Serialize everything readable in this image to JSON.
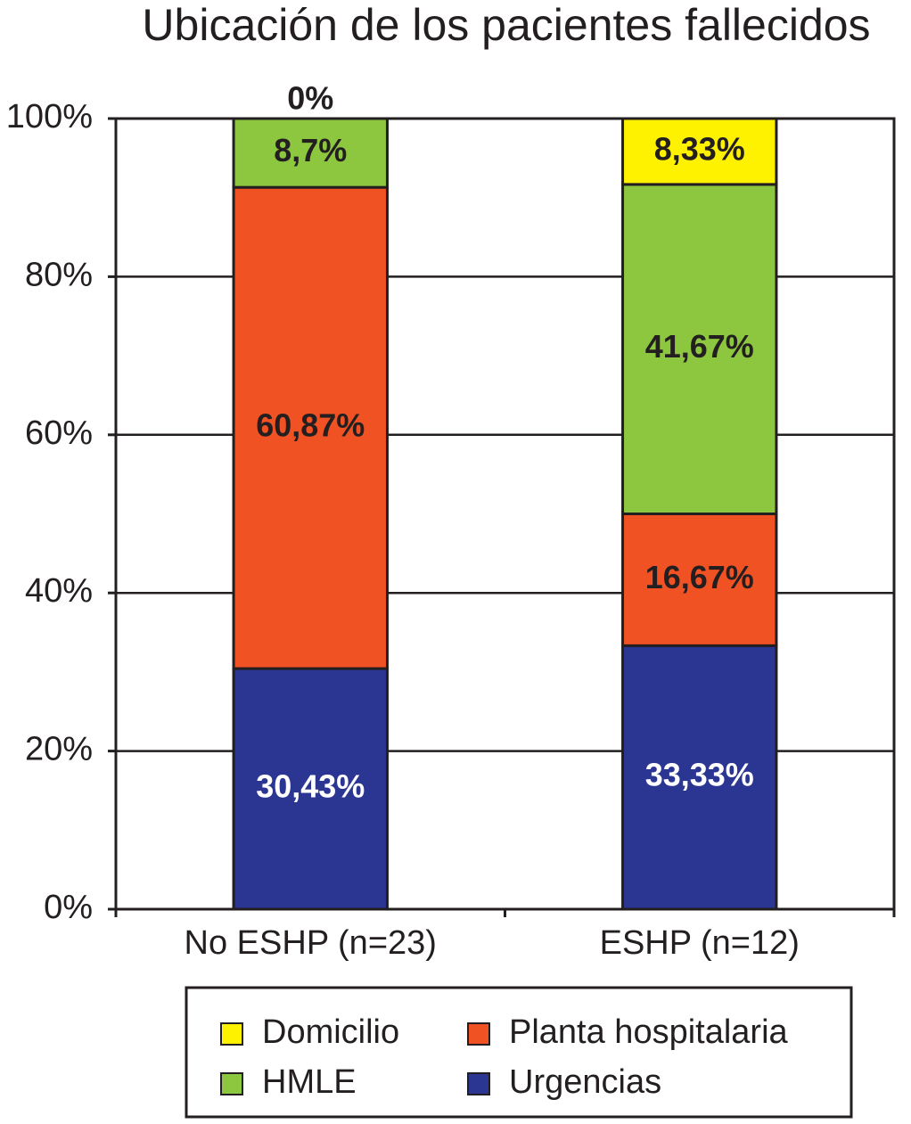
{
  "chart_data": {
    "type": "stacked_bar",
    "title": "Ubicación de los pacientes fallecidos",
    "categories": [
      "No ESHP (n=23)",
      "ESHP (n=12)"
    ],
    "series": [
      {
        "name": "Urgencias",
        "color": "#2b3592",
        "label_color": "#ffffff",
        "values": [
          30.43,
          33.33
        ],
        "value_labels": [
          "30,43%",
          "33,33%"
        ]
      },
      {
        "name": "Planta hospitalaria",
        "color": "#f05223",
        "label_color": "#231f20",
        "values": [
          60.87,
          16.67
        ],
        "value_labels": [
          "60,87%",
          "16,67%"
        ]
      },
      {
        "name": "HMLE",
        "color": "#8dc63f",
        "label_color": "#231f20",
        "values": [
          8.7,
          41.67
        ],
        "value_labels": [
          "8,7%",
          "41,67%"
        ]
      },
      {
        "name": "Domicilio",
        "color": "#fff200",
        "label_color": "#231f20",
        "values": [
          0,
          8.33
        ],
        "value_labels": [
          "0%",
          "8,33%"
        ]
      }
    ],
    "ylim": [
      0,
      100
    ],
    "yticks": [
      {
        "value": 0,
        "label": "0%"
      },
      {
        "value": 20,
        "label": "20%"
      },
      {
        "value": 40,
        "label": "40%"
      },
      {
        "value": 60,
        "label": "60%"
      },
      {
        "value": 80,
        "label": "80%"
      },
      {
        "value": 100,
        "label": "100%"
      }
    ],
    "grid": true,
    "legend_position": "bottom"
  }
}
